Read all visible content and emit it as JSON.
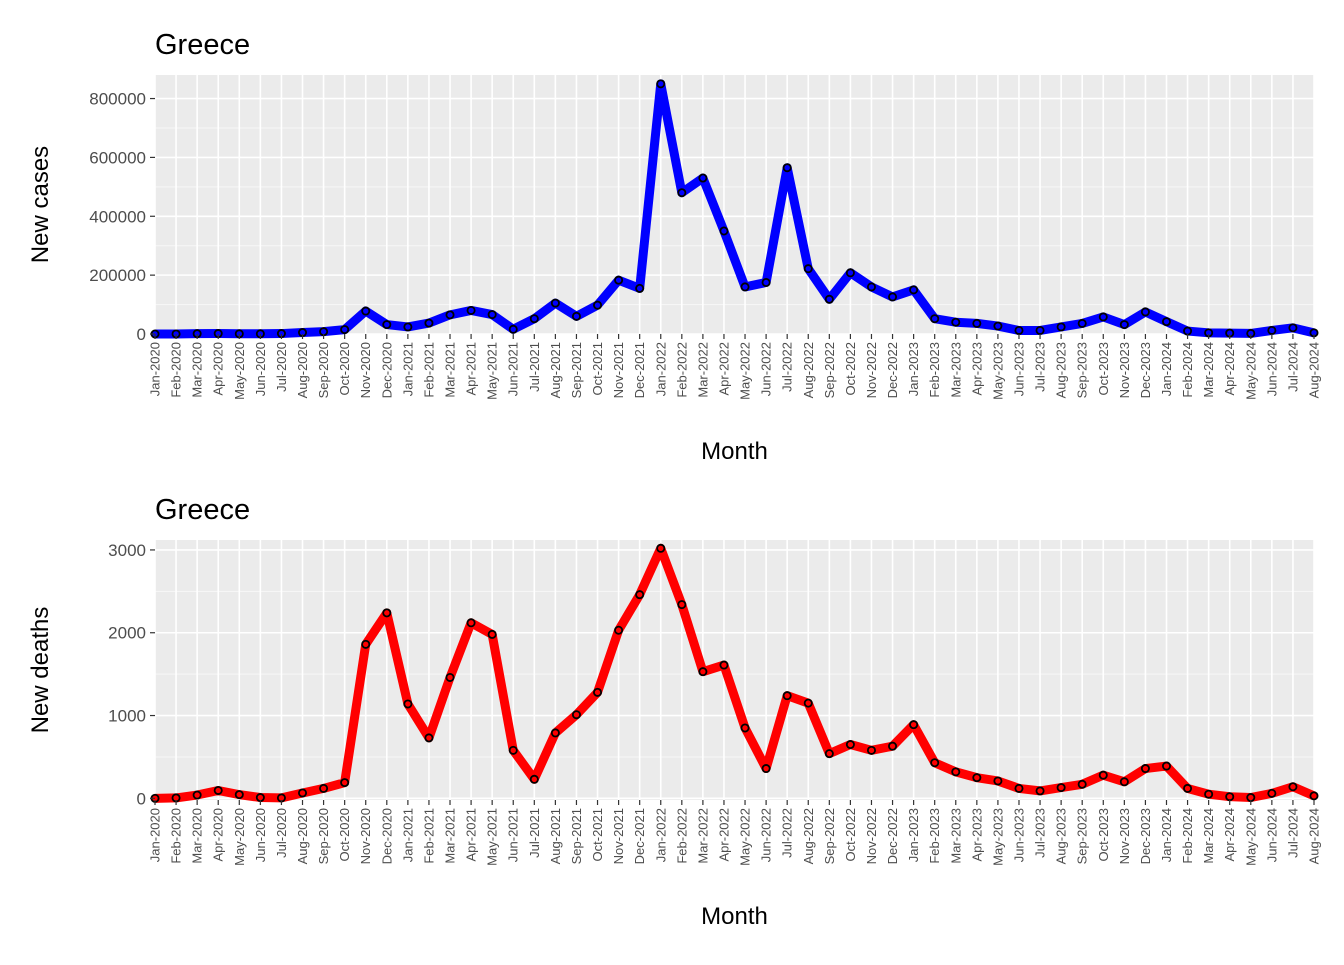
{
  "chart_data": [
    {
      "type": "line",
      "title": "Greece",
      "xlabel": "Month",
      "ylabel": "New cases",
      "ylim": [
        0,
        880000
      ],
      "yticks": [
        0,
        200000,
        400000,
        600000,
        800000
      ],
      "grid": true,
      "line_color": "#0000ff",
      "x": [
        "Jan-2020",
        "Feb-2020",
        "Mar-2020",
        "Apr-2020",
        "May-2020",
        "Jun-2020",
        "Jul-2020",
        "Aug-2020",
        "Sep-2020",
        "Oct-2020",
        "Nov-2020",
        "Dec-2020",
        "Jan-2021",
        "Feb-2021",
        "Mar-2021",
        "Apr-2021",
        "May-2021",
        "Jun-2021",
        "Jul-2021",
        "Aug-2021",
        "Sep-2021",
        "Oct-2021",
        "Nov-2021",
        "Dec-2021",
        "Jan-2022",
        "Feb-2022",
        "Mar-2022",
        "Apr-2022",
        "May-2022",
        "Jun-2022",
        "Jul-2022",
        "Aug-2022",
        "Sep-2022",
        "Oct-2022",
        "Nov-2022",
        "Dec-2022",
        "Jan-2023",
        "Feb-2023",
        "Mar-2023",
        "Apr-2023",
        "May-2023",
        "Jun-2023",
        "Jul-2023",
        "Aug-2023",
        "Sep-2023",
        "Oct-2023",
        "Nov-2023",
        "Dec-2023",
        "Jan-2024",
        "Feb-2024",
        "Mar-2024",
        "Apr-2024",
        "May-2024",
        "Jun-2024",
        "Jul-2024",
        "Aug-2024"
      ],
      "values": [
        0,
        100,
        1200,
        1500,
        800,
        700,
        1500,
        5000,
        8000,
        15000,
        78000,
        32000,
        24000,
        37000,
        65000,
        80000,
        66000,
        16000,
        52000,
        105000,
        60000,
        98000,
        183000,
        155000,
        850000,
        480000,
        530000,
        350000,
        160000,
        175000,
        565000,
        222000,
        118000,
        208000,
        160000,
        126000,
        150000,
        52000,
        40000,
        36000,
        27000,
        12000,
        12000,
        24000,
        36000,
        58000,
        32000,
        75000,
        42000,
        10000,
        4000,
        3000,
        2000,
        12000,
        21000,
        4000
      ]
    },
    {
      "type": "line",
      "title": "Greece",
      "xlabel": "Month",
      "ylabel": "New deaths",
      "ylim": [
        -20,
        3120
      ],
      "yticks": [
        0,
        1000,
        2000,
        3000
      ],
      "grid": true,
      "line_color": "#ff0000",
      "x": [
        "Jan-2020",
        "Feb-2020",
        "Mar-2020",
        "Apr-2020",
        "May-2020",
        "Jun-2020",
        "Jul-2020",
        "Aug-2020",
        "Sep-2020",
        "Oct-2020",
        "Nov-2020",
        "Dec-2020",
        "Jan-2021",
        "Feb-2021",
        "Mar-2021",
        "Apr-2021",
        "May-2021",
        "Jun-2021",
        "Jul-2021",
        "Aug-2021",
        "Sep-2021",
        "Oct-2021",
        "Nov-2021",
        "Dec-2021",
        "Jan-2022",
        "Feb-2022",
        "Mar-2022",
        "Apr-2022",
        "May-2022",
        "Jun-2022",
        "Jul-2022",
        "Aug-2022",
        "Sep-2022",
        "Oct-2022",
        "Nov-2022",
        "Dec-2022",
        "Jan-2023",
        "Feb-2023",
        "Mar-2023",
        "Apr-2023",
        "May-2023",
        "Jun-2023",
        "Jul-2023",
        "Aug-2023",
        "Sep-2023",
        "Oct-2023",
        "Nov-2023",
        "Dec-2023",
        "Jan-2024",
        "Feb-2024",
        "Mar-2024",
        "Apr-2024",
        "May-2024",
        "Jun-2024",
        "Jul-2024",
        "Aug-2024"
      ],
      "values": [
        0,
        5,
        40,
        95,
        45,
        10,
        5,
        65,
        120,
        190,
        1860,
        2240,
        1140,
        730,
        1460,
        2120,
        1980,
        580,
        230,
        790,
        1010,
        1280,
        2030,
        2460,
        3020,
        2340,
        1530,
        1610,
        850,
        360,
        1240,
        1150,
        540,
        650,
        580,
        630,
        890,
        430,
        320,
        250,
        210,
        120,
        90,
        130,
        170,
        280,
        200,
        360,
        390,
        120,
        50,
        20,
        10,
        60,
        140,
        30
      ]
    }
  ]
}
